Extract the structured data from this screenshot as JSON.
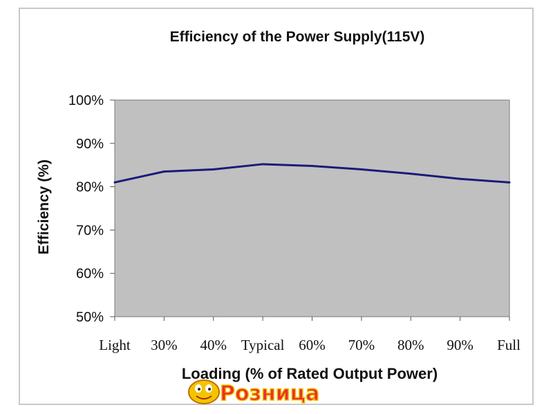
{
  "chart_data": {
    "type": "line",
    "title": "Efficiency of the Power Supply(115V)",
    "xlabel": "Loading (% of Rated Output Power)",
    "ylabel": "Efficiency (%)",
    "categories": [
      "Light",
      "30%",
      "40%",
      "Typical",
      "60%",
      "70%",
      "80%",
      "90%",
      "Full"
    ],
    "yticks": [
      "50%",
      "60%",
      "70%",
      "80%",
      "90%",
      "100%"
    ],
    "ylim": [
      50,
      100
    ],
    "series": [
      {
        "values": [
          81,
          83.5,
          84,
          85.2,
          84.8,
          84,
          83,
          81.8,
          81
        ]
      }
    ],
    "plot_background": "#c0c0c0",
    "line_color": "#1a1a7a",
    "grid": false
  },
  "watermark": {
    "text": "Розница",
    "color_fill": "#e8312a",
    "color_outline": "#f5c400"
  }
}
